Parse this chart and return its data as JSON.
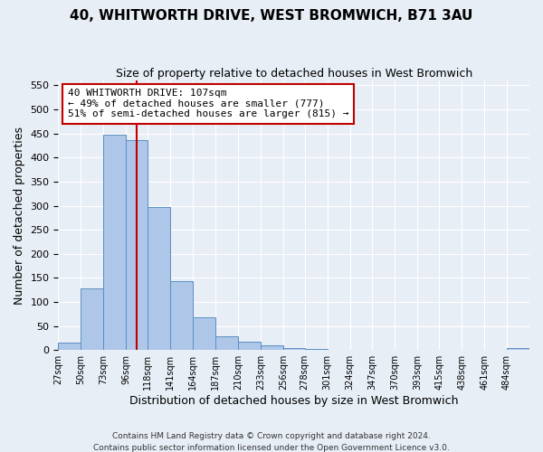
{
  "title": "40, WHITWORTH DRIVE, WEST BROMWICH, B71 3AU",
  "subtitle": "Size of property relative to detached houses in West Bromwich",
  "xlabel": "Distribution of detached houses by size in West Bromwich",
  "ylabel": "Number of detached properties",
  "footer_line1": "Contains HM Land Registry data © Crown copyright and database right 2024.",
  "footer_line2": "Contains public sector information licensed under the Open Government Licence v3.0.",
  "bin_labels": [
    "27sqm",
    "50sqm",
    "73sqm",
    "96sqm",
    "118sqm",
    "141sqm",
    "164sqm",
    "187sqm",
    "210sqm",
    "233sqm",
    "256sqm",
    "278sqm",
    "301sqm",
    "324sqm",
    "347sqm",
    "370sqm",
    "393sqm",
    "415sqm",
    "438sqm",
    "461sqm",
    "484sqm"
  ],
  "bin_edges": [
    27,
    50,
    73,
    96,
    118,
    141,
    164,
    187,
    210,
    233,
    256,
    278,
    301,
    324,
    347,
    370,
    393,
    415,
    438,
    461,
    484,
    507
  ],
  "bar_values": [
    15,
    128,
    447,
    436,
    297,
    144,
    68,
    29,
    17,
    9,
    5,
    2,
    1,
    0,
    0,
    0,
    0,
    0,
    0,
    0,
    5
  ],
  "bar_color": "#aec6e8",
  "bar_edge_color": "#5a8fc4",
  "property_size": 107,
  "vline_color": "#c00000",
  "annotation_line1": "40 WHITWORTH DRIVE: 107sqm",
  "annotation_line2": "← 49% of detached houses are smaller (777)",
  "annotation_line3": "51% of semi-detached houses are larger (815) →",
  "annotation_box_color": "#ffffff",
  "annotation_box_edge_color": "#c00000",
  "ylim": [
    0,
    560
  ],
  "yticks": [
    0,
    50,
    100,
    150,
    200,
    250,
    300,
    350,
    400,
    450,
    500,
    550
  ],
  "background_color": "#e8eef6",
  "grid_color": "#ffffff"
}
